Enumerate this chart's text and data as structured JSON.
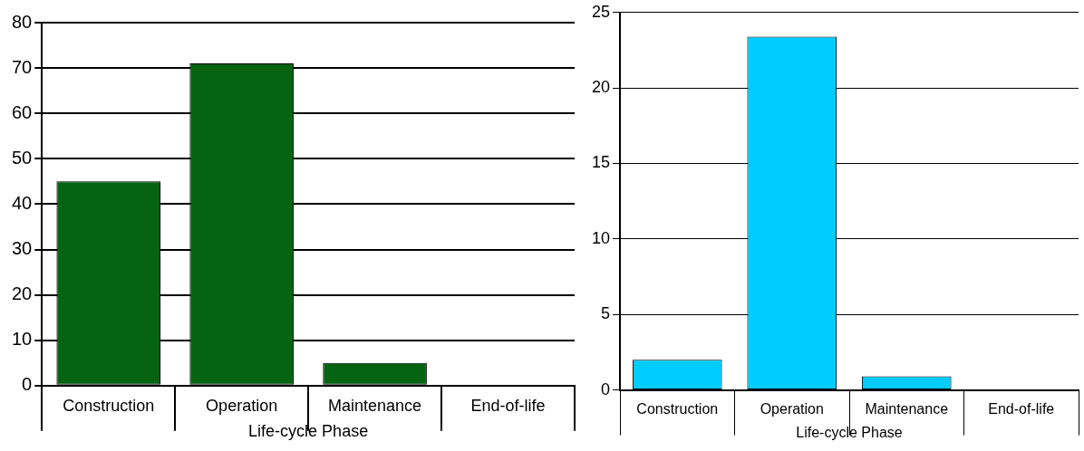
{
  "chart_data": [
    {
      "type": "bar",
      "categories": [
        "Construction",
        "Operation",
        "Maintenance",
        "End-of-life"
      ],
      "values": [
        45,
        71,
        5,
        0
      ],
      "color": "#056312",
      "xlabel": "Life-cycle Phase",
      "ylim": [
        0,
        80
      ],
      "yticks": [
        0,
        10,
        20,
        30,
        40,
        50,
        60,
        70,
        80
      ],
      "grid": "y"
    },
    {
      "type": "bar",
      "categories": [
        "Construction",
        "Operation",
        "Maintenance",
        "End-of-life"
      ],
      "values": [
        2,
        23.4,
        0.9,
        0
      ],
      "color": "#00ccff",
      "xlabel": "Life-cycle Phase",
      "ylim": [
        0,
        25
      ],
      "yticks": [
        0,
        5,
        10,
        15,
        20,
        25
      ],
      "grid": "y"
    }
  ]
}
